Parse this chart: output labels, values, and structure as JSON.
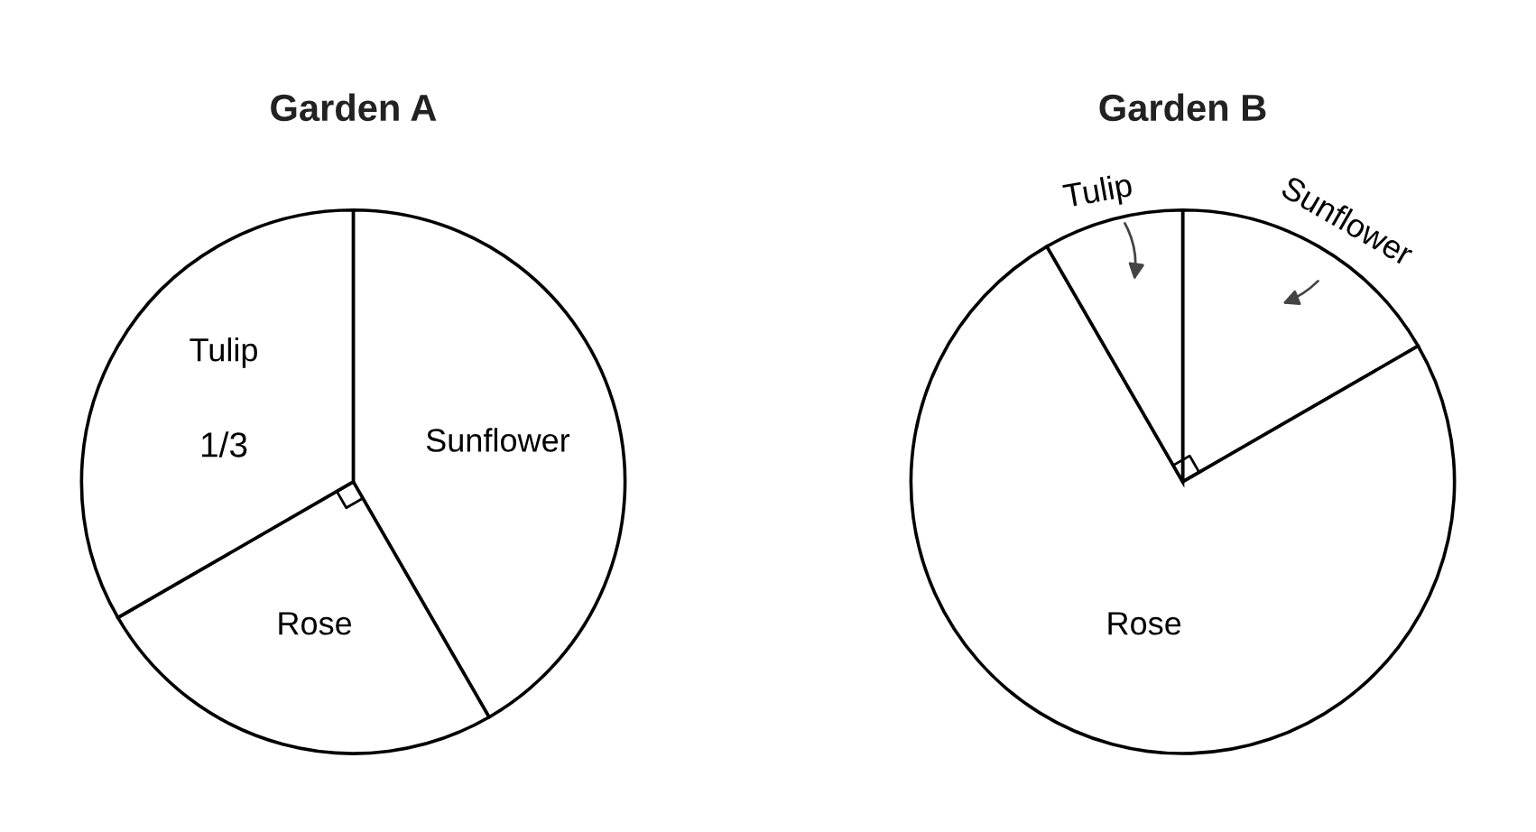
{
  "chart_data": [
    {
      "type": "pie",
      "title": "Garden A",
      "categories": [
        "Sunflower",
        "Rose",
        "Tulip"
      ],
      "values": [
        0.4167,
        0.25,
        0.3333
      ],
      "colors": [
        "#ffffff",
        "#ffffff",
        "#ffffff"
      ],
      "value_labels": [
        null,
        null,
        "1/3"
      ]
    },
    {
      "type": "pie",
      "title": "Garden B",
      "categories": [
        "Sunflower",
        "Rose",
        "Tulip"
      ],
      "values": [
        16.67,
        75,
        8.33
      ],
      "colors": [
        "#ffffff",
        "#ffffff",
        "#ffffff"
      ]
    }
  ]
}
